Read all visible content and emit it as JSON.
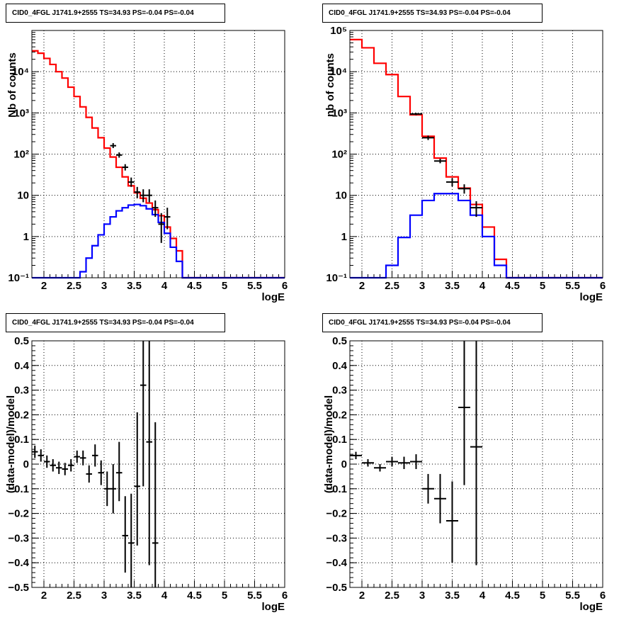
{
  "title_text": "CID0_4FGL J1741.9+2555 TS=34.93 PS=-0.04 PS=-0.04",
  "colors": {
    "model_total": "#ff0000",
    "source_model": "#0000ff",
    "data": "#000000"
  },
  "chart_data": [
    {
      "id": "tl",
      "type": "line",
      "title": "CID0_4FGL J1741.9+2555 TS=34.93 PS=-0.04 PS=-0.04",
      "xlabel": "logE",
      "ylabel": "Nb of counts",
      "xlim": [
        1.8,
        6.0
      ],
      "ylim": [
        0.1,
        100000
      ],
      "yscale": "log",
      "grid": true,
      "xticks": [
        2,
        2.5,
        3,
        3.5,
        4,
        4.5,
        5,
        5.5,
        6
      ],
      "xtick_labels": [
        "2",
        "2.5",
        "3",
        "3.5",
        "4",
        "4.5",
        "5",
        "5.5",
        "6"
      ],
      "yticks": [
        0.1,
        1,
        10,
        100,
        1000,
        10000
      ],
      "ytick_labels": [
        "10⁻¹",
        "1",
        "10",
        "10²",
        "10³",
        "10⁴"
      ],
      "bin_edges": [
        1.8,
        1.9,
        2.0,
        2.1,
        2.2,
        2.3,
        2.4,
        2.5,
        2.6,
        2.7,
        2.8,
        2.9,
        3.0,
        3.1,
        3.2,
        3.3,
        3.4,
        3.5,
        3.6,
        3.7,
        3.8,
        3.9,
        4.0,
        4.1,
        4.2,
        4.3,
        4.4,
        4.5,
        4.6,
        4.7,
        4.8,
        4.9,
        5.0,
        5.1,
        5.2,
        5.3,
        5.4,
        5.5,
        5.6,
        5.7,
        5.8,
        5.9,
        6.0
      ],
      "series": [
        {
          "name": "",
          "kind": "step",
          "color": "#ff0000",
          "values": [
            32000,
            28000,
            21000,
            15000,
            10000,
            7000,
            4200,
            2500,
            1400,
            780,
            430,
            250,
            140,
            85,
            48,
            28,
            17,
            11.5,
            8.5,
            6.5,
            4.5,
            3.2,
            1.7,
            0.9,
            0.45,
            0.1,
            0.1,
            0.1,
            0.1,
            0.1,
            0.1,
            0.1,
            0.1,
            0.1,
            0.1,
            0.1,
            0.1,
            0.1,
            0.1,
            0.1,
            0.1,
            0.1
          ]
        },
        {
          "name": "",
          "kind": "step",
          "color": "#0000ff",
          "values": [
            0.1,
            0.1,
            0.1,
            0.1,
            0.1,
            0.1,
            0.1,
            0.1,
            0.14,
            0.3,
            0.6,
            1.1,
            2.0,
            3.0,
            4.2,
            5.0,
            5.8,
            6.0,
            5.6,
            4.7,
            3.4,
            2.2,
            1.2,
            0.55,
            0.25,
            0.1,
            0.1,
            0.1,
            0.1,
            0.1,
            0.1,
            0.1,
            0.1,
            0.1,
            0.1,
            0.1,
            0.1,
            0.1,
            0.1,
            0.1,
            0.1,
            0.1
          ]
        },
        {
          "name": "",
          "kind": "errorbar",
          "color": "#000000",
          "points": [
            {
              "x": 3.15,
              "y": 160,
              "ylo": 140,
              "yhi": 185
            },
            {
              "x": 3.25,
              "y": 95,
              "ylo": 82,
              "yhi": 110
            },
            {
              "x": 3.35,
              "y": 48,
              "ylo": 40,
              "yhi": 57
            },
            {
              "x": 3.45,
              "y": 21,
              "ylo": 16,
              "yhi": 27
            },
            {
              "x": 3.55,
              "y": 12,
              "ylo": 8.5,
              "yhi": 16
            },
            {
              "x": 3.65,
              "y": 10,
              "ylo": 6.8,
              "yhi": 14
            },
            {
              "x": 3.75,
              "y": 10,
              "ylo": 6.8,
              "yhi": 14
            },
            {
              "x": 3.85,
              "y": 5,
              "ylo": 3,
              "yhi": 7.5
            },
            {
              "x": 3.95,
              "y": 2,
              "ylo": 0.7,
              "yhi": 3.7
            },
            {
              "x": 4.05,
              "y": 3,
              "ylo": 1.5,
              "yhi": 5
            }
          ]
        }
      ]
    },
    {
      "id": "tr",
      "type": "line",
      "title": "CID0_4FGL J1741.9+2555 TS=34.93 PS=-0.04 PS=-0.04",
      "xlabel": "logE",
      "ylabel": "nb of counts",
      "xlim": [
        1.8,
        6.0
      ],
      "ylim": [
        0.1,
        100000
      ],
      "yscale": "log",
      "grid": true,
      "xticks": [
        2,
        2.5,
        3,
        3.5,
        4,
        4.5,
        5,
        5.5,
        6
      ],
      "xtick_labels": [
        "2",
        "2.5",
        "3",
        "3.5",
        "4",
        "4.5",
        "5",
        "5.5",
        "6"
      ],
      "yticks": [
        0.1,
        1,
        10,
        100,
        1000,
        10000,
        100000
      ],
      "ytick_labels": [
        "10⁻¹",
        "1",
        "10",
        "10²",
        "10³",
        "10⁴",
        "10⁵"
      ],
      "bin_edges": [
        1.8,
        2.0,
        2.2,
        2.4,
        2.6,
        2.8,
        3.0,
        3.2,
        3.4,
        3.6,
        3.8,
        4.0,
        4.2,
        4.4,
        4.6,
        4.8,
        5.0,
        5.2,
        5.4,
        5.6,
        5.8,
        6.0
      ],
      "series": [
        {
          "name": "",
          "kind": "step",
          "color": "#ff0000",
          "values": [
            60000,
            38000,
            16000,
            8500,
            2500,
            900,
            270,
            80,
            28,
            15,
            6,
            1.7,
            0.28,
            0.1,
            0.1,
            0.1,
            0.1,
            0.1,
            0.1,
            0.1,
            0.1
          ]
        },
        {
          "name": "",
          "kind": "step",
          "color": "#0000ff",
          "values": [
            0.1,
            0.1,
            0.1,
            0.2,
            0.95,
            3.3,
            7.5,
            11,
            11,
            7.5,
            3.3,
            1.0,
            0.2,
            0.1,
            0.1,
            0.1,
            0.1,
            0.1,
            0.1,
            0.1,
            0.1
          ]
        },
        {
          "name": "",
          "kind": "errorbar",
          "color": "#000000",
          "points": [
            {
              "x": 2.9,
              "y": 940,
              "ylo": 880,
              "yhi": 1000
            },
            {
              "x": 3.1,
              "y": 250,
              "ylo": 220,
              "yhi": 282
            },
            {
              "x": 3.3,
              "y": 68,
              "ylo": 60,
              "yhi": 77
            },
            {
              "x": 3.5,
              "y": 21,
              "ylo": 16.5,
              "yhi": 26
            },
            {
              "x": 3.7,
              "y": 14.5,
              "ylo": 11,
              "yhi": 18.5
            },
            {
              "x": 3.9,
              "y": 5,
              "ylo": 3,
              "yhi": 7.2
            }
          ]
        }
      ]
    },
    {
      "id": "bl",
      "type": "scatter",
      "title": "CID0_4FGL J1741.9+2555 TS=34.93 PS=-0.04 PS=-0.04",
      "xlabel": "logE",
      "ylabel": "(data-model)/model",
      "xlim": [
        1.8,
        6.0
      ],
      "ylim": [
        -0.5,
        0.5
      ],
      "yscale": "linear",
      "grid": true,
      "xticks": [
        2,
        2.5,
        3,
        3.5,
        4,
        4.5,
        5,
        5.5,
        6
      ],
      "xtick_labels": [
        "2",
        "2.5",
        "3",
        "3.5",
        "4",
        "4.5",
        "5",
        "5.5",
        "6"
      ],
      "yticks": [
        -0.5,
        -0.4,
        -0.3,
        -0.2,
        -0.1,
        0,
        0.1,
        0.2,
        0.3,
        0.4,
        0.5
      ],
      "ytick_labels": [
        "−0.5",
        "−0.4",
        "−0.3",
        "−0.2",
        "−0.1",
        "0",
        "0.1",
        "0.2",
        "0.3",
        "0.4",
        "0.5"
      ],
      "series": [
        {
          "name": "",
          "kind": "errorbar",
          "color": "#000000",
          "points": [
            {
              "x": 1.85,
              "y": 0.05,
              "ylo": 0.025,
              "yhi": 0.075
            },
            {
              "x": 1.95,
              "y": 0.035,
              "ylo": 0.01,
              "yhi": 0.06
            },
            {
              "x": 2.05,
              "y": 0.01,
              "ylo": -0.015,
              "yhi": 0.035
            },
            {
              "x": 2.15,
              "y": -0.005,
              "ylo": -0.03,
              "yhi": 0.02
            },
            {
              "x": 2.25,
              "y": -0.015,
              "ylo": -0.04,
              "yhi": 0.01
            },
            {
              "x": 2.35,
              "y": -0.02,
              "ylo": -0.045,
              "yhi": 0.005
            },
            {
              "x": 2.45,
              "y": -0.005,
              "ylo": -0.03,
              "yhi": 0.02
            },
            {
              "x": 2.55,
              "y": 0.03,
              "ylo": 0.005,
              "yhi": 0.055
            },
            {
              "x": 2.65,
              "y": 0.025,
              "ylo": -0.005,
              "yhi": 0.055
            },
            {
              "x": 2.75,
              "y": -0.04,
              "ylo": -0.075,
              "yhi": -0.005
            },
            {
              "x": 2.85,
              "y": 0.035,
              "ylo": -0.01,
              "yhi": 0.08
            },
            {
              "x": 2.95,
              "y": -0.035,
              "ylo": -0.085,
              "yhi": 0.015
            },
            {
              "x": 3.05,
              "y": -0.1,
              "ylo": -0.17,
              "yhi": -0.03
            },
            {
              "x": 3.15,
              "y": -0.1,
              "ylo": -0.2,
              "yhi": 0.0
            },
            {
              "x": 3.25,
              "y": -0.035,
              "ylo": -0.15,
              "yhi": 0.09
            },
            {
              "x": 3.35,
              "y": -0.29,
              "ylo": -0.44,
              "yhi": -0.13
            },
            {
              "x": 3.45,
              "y": -0.32,
              "ylo": -0.5,
              "yhi": -0.12
            },
            {
              "x": 3.55,
              "y": -0.09,
              "ylo": -0.33,
              "yhi": 0.21
            },
            {
              "x": 3.65,
              "y": 0.32,
              "ylo": -0.09,
              "yhi": 0.5
            },
            {
              "x": 3.75,
              "y": 0.09,
              "ylo": -0.41,
              "yhi": 0.5
            },
            {
              "x": 3.85,
              "y": -0.32,
              "ylo": -0.5,
              "yhi": 0.17
            }
          ]
        }
      ]
    },
    {
      "id": "br",
      "type": "scatter",
      "title": "CID0_4FGL J1741.9+2555 TS=34.93 PS=-0.04 PS=-0.04",
      "xlabel": "logE",
      "ylabel": "(data-model)/model",
      "xlim": [
        1.8,
        6.0
      ],
      "ylim": [
        -0.5,
        0.5
      ],
      "yscale": "linear",
      "grid": true,
      "xticks": [
        2,
        2.5,
        3,
        3.5,
        4,
        4.5,
        5,
        5.5,
        6
      ],
      "xtick_labels": [
        "2",
        "2.5",
        "3",
        "3.5",
        "4",
        "4.5",
        "5",
        "5.5",
        "6"
      ],
      "yticks": [
        -0.5,
        -0.4,
        -0.3,
        -0.2,
        -0.1,
        0,
        0.1,
        0.2,
        0.3,
        0.4,
        0.5
      ],
      "ytick_labels": [
        "−0.5",
        "−0.4",
        "−0.3",
        "−0.2",
        "−0.1",
        "0",
        "0.1",
        "0.2",
        "0.3",
        "0.4",
        "0.5"
      ],
      "series": [
        {
          "name": "",
          "kind": "errorbar",
          "color": "#000000",
          "points": [
            {
              "x": 1.9,
              "y": 0.035,
              "ylo": 0.02,
              "yhi": 0.05
            },
            {
              "x": 2.1,
              "y": 0.005,
              "ylo": -0.01,
              "yhi": 0.02
            },
            {
              "x": 2.3,
              "y": -0.015,
              "ylo": -0.03,
              "yhi": 0.0
            },
            {
              "x": 2.5,
              "y": 0.01,
              "ylo": -0.01,
              "yhi": 0.03
            },
            {
              "x": 2.7,
              "y": 0.005,
              "ylo": -0.02,
              "yhi": 0.03
            },
            {
              "x": 2.9,
              "y": 0.01,
              "ylo": -0.02,
              "yhi": 0.04
            },
            {
              "x": 3.1,
              "y": -0.1,
              "ylo": -0.16,
              "yhi": -0.04
            },
            {
              "x": 3.3,
              "y": -0.14,
              "ylo": -0.24,
              "yhi": -0.04
            },
            {
              "x": 3.5,
              "y": -0.23,
              "ylo": -0.4,
              "yhi": -0.07
            },
            {
              "x": 3.7,
              "y": 0.23,
              "ylo": -0.085,
              "yhi": 0.5
            },
            {
              "x": 3.9,
              "y": 0.07,
              "ylo": -0.41,
              "yhi": 0.5
            }
          ]
        }
      ]
    }
  ]
}
